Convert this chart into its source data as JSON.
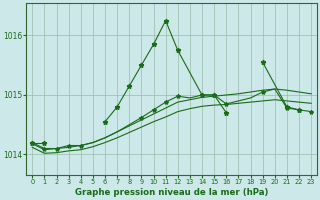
{
  "background_color": "#cce8e8",
  "grid_color": "#99bbaa",
  "line_color": "#1a6b1a",
  "title": "Graphe pression niveau de la mer (hPa)",
  "ylabel_ticks": [
    1014,
    1015,
    1016
  ],
  "xlim": [
    -0.5,
    23.5
  ],
  "ylim": [
    1013.65,
    1016.55
  ],
  "figsize": [
    3.2,
    2.0
  ],
  "dpi": 100,
  "spike_parts": [
    {
      "x": [
        0,
        1
      ],
      "y": [
        1014.2,
        1014.2
      ]
    },
    {
      "x": [
        6,
        7,
        8,
        9,
        10,
        11,
        12,
        14,
        15,
        16
      ],
      "y": [
        1014.55,
        1014.8,
        1015.15,
        1015.5,
        1015.85,
        1016.25,
        1015.75,
        1015.0,
        1015.0,
        1014.7
      ]
    },
    {
      "x": [
        19,
        21,
        22
      ],
      "y": [
        1015.55,
        1014.8,
        1014.75
      ]
    }
  ],
  "mid_line": {
    "x": [
      0,
      1,
      2,
      3,
      4,
      5,
      6,
      7,
      8,
      9,
      10,
      11,
      12,
      13,
      14,
      15,
      16,
      17,
      18,
      19,
      20,
      21,
      22,
      23
    ],
    "y": [
      1014.2,
      1014.1,
      1014.1,
      1014.15,
      1014.15,
      1014.2,
      1014.28,
      1014.38,
      1014.5,
      1014.62,
      1014.75,
      1014.88,
      1014.98,
      1014.95,
      1015.0,
      1015.0,
      1014.85,
      1014.9,
      1014.95,
      1015.05,
      1015.1,
      1014.78,
      1014.75,
      1014.72
    ],
    "markevery": [
      0,
      1,
      2,
      3,
      4,
      9,
      10,
      11,
      12,
      14,
      15,
      16,
      19,
      21,
      22,
      23
    ]
  },
  "smooth_upper": {
    "x": [
      0,
      1,
      2,
      3,
      4,
      5,
      6,
      7,
      8,
      9,
      10,
      11,
      12,
      13,
      14,
      15,
      16,
      17,
      18,
      19,
      20,
      21,
      22,
      23
    ],
    "y": [
      1014.18,
      1014.08,
      1014.1,
      1014.12,
      1014.15,
      1014.2,
      1014.28,
      1014.38,
      1014.48,
      1014.58,
      1014.68,
      1014.78,
      1014.88,
      1014.92,
      1014.96,
      1014.98,
      1015.0,
      1015.02,
      1015.05,
      1015.08,
      1015.1,
      1015.08,
      1015.05,
      1015.02
    ]
  },
  "smooth_lower": {
    "x": [
      0,
      1,
      2,
      3,
      4,
      5,
      6,
      7,
      8,
      9,
      10,
      11,
      12,
      13,
      14,
      15,
      16,
      17,
      18,
      19,
      20,
      21,
      22,
      23
    ],
    "y": [
      1014.12,
      1014.02,
      1014.03,
      1014.06,
      1014.08,
      1014.13,
      1014.2,
      1014.28,
      1014.37,
      1014.46,
      1014.55,
      1014.63,
      1014.72,
      1014.77,
      1014.81,
      1014.83,
      1014.84,
      1014.86,
      1014.88,
      1014.9,
      1014.92,
      1014.9,
      1014.88,
      1014.86
    ]
  }
}
